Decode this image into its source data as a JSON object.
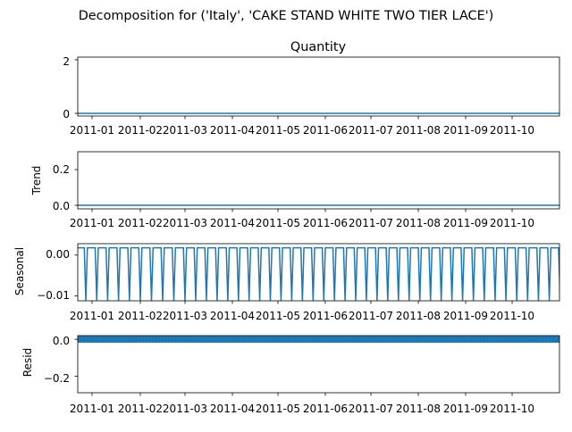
{
  "figure": {
    "suptitle": "Decomposition for ('Italy', 'CAKE STAND WHITE TWO TIER LACE')"
  },
  "colors": {
    "line": "#1f77b4",
    "axes": "#000000",
    "background": "#ffffff"
  },
  "chart_data": [
    {
      "type": "line",
      "title": "Quantity",
      "ylabel": "",
      "x_start": "2010-12-16",
      "x_end": "2011-11-24",
      "x_ticks": [
        "2011-01",
        "2011-02",
        "2011-03",
        "2011-04",
        "2011-05",
        "2011-06",
        "2011-07",
        "2011-08",
        "2011-09",
        "2011-10"
      ],
      "y_ticks": [
        "0",
        "2"
      ],
      "ylim": [
        -0.1,
        2.1
      ],
      "points": [
        {
          "x": "2010-12-16",
          "y": 2
        },
        {
          "x": "2010-12-17",
          "y": 0
        },
        {
          "x": "2011-11-23",
          "y": 0
        },
        {
          "x": "2011-11-24",
          "y": 2
        }
      ]
    },
    {
      "type": "line",
      "title": "",
      "ylabel": "Trend",
      "x_start": "2010-12-16",
      "x_end": "2011-11-24",
      "x_ticks": [
        "2011-01",
        "2011-02",
        "2011-03",
        "2011-04",
        "2011-05",
        "2011-06",
        "2011-07",
        "2011-08",
        "2011-09",
        "2011-10"
      ],
      "y_ticks": [
        "0.0",
        "0.2"
      ],
      "ylim": [
        -0.02,
        0.3
      ],
      "points": [
        {
          "x": "2010-12-19",
          "y": 0.286
        },
        {
          "x": "2010-12-20",
          "y": 0
        },
        {
          "x": "2011-11-20",
          "y": 0
        },
        {
          "x": "2011-11-21",
          "y": 0.286
        }
      ]
    },
    {
      "type": "line",
      "title": "",
      "ylabel": "Seasonal",
      "x_start": "2010-12-16",
      "x_end": "2011-11-24",
      "x_ticks": [
        "2011-01",
        "2011-02",
        "2011-03",
        "2011-04",
        "2011-05",
        "2011-06",
        "2011-07",
        "2011-08",
        "2011-09",
        "2011-10"
      ],
      "y_ticks": [
        "0.00",
        "−0.01"
      ],
      "y_tick_values": [
        0.0,
        -0.01
      ],
      "ylim": [
        -0.0112,
        0.0028
      ],
      "pattern": {
        "period_days": 7,
        "weekly_values": [
          -0.0111,
          0.0018,
          0.0018,
          0.0018,
          0.0018,
          0.0018,
          0.0018
        ]
      }
    },
    {
      "type": "scatter",
      "title": "",
      "ylabel": "Resid",
      "x_start": "2010-12-16",
      "x_end": "2011-11-24",
      "x_ticks": [
        "2011-01",
        "2011-02",
        "2011-03",
        "2011-04",
        "2011-05",
        "2011-06",
        "2011-07",
        "2011-08",
        "2011-09",
        "2011-10"
      ],
      "y_ticks": [
        "0.0",
        "−0.2"
      ],
      "y_tick_values": [
        0.0,
        -0.2
      ],
      "ylim": [
        -0.29,
        0.02
      ],
      "outliers": [
        {
          "x": "2010-12-18",
          "y": -0.27
        },
        {
          "x": "2011-11-22",
          "y": -0.27
        }
      ],
      "baseline": {
        "from": "2010-12-19",
        "to": "2011-11-21",
        "every_days": 2,
        "y": 0.0
      }
    }
  ]
}
